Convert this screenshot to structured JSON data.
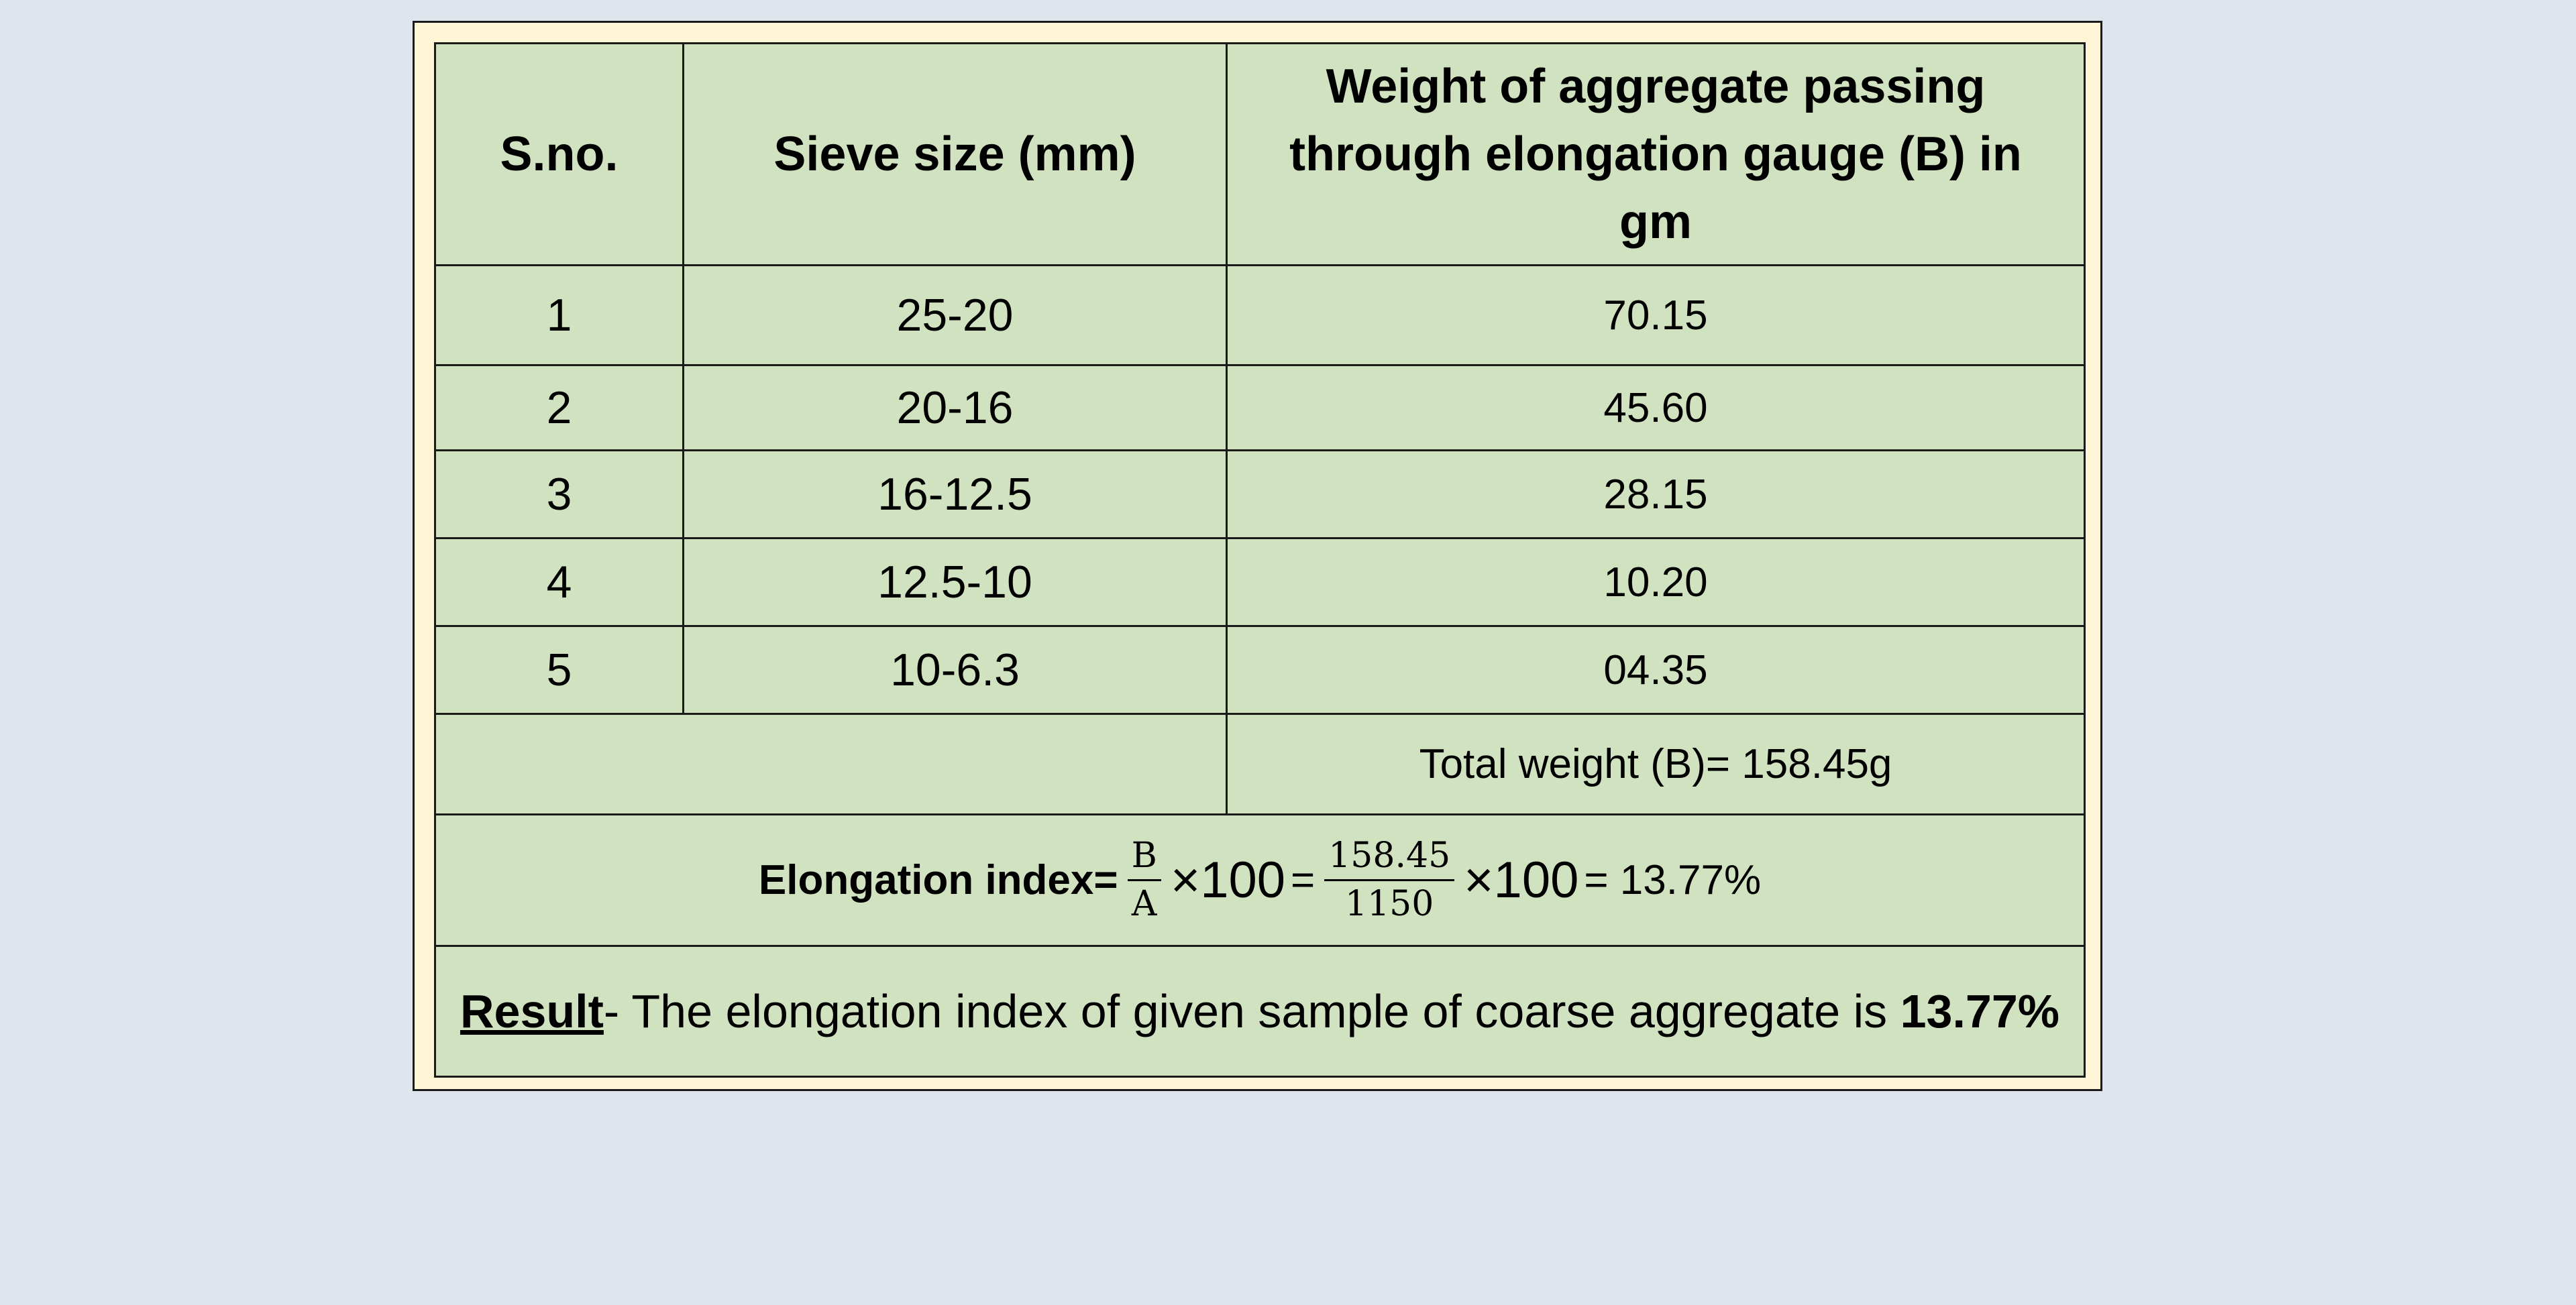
{
  "table": {
    "headers": {
      "sno": "S.no.",
      "sieve_size": "Sieve size (mm)",
      "weight_line1": "Weight of aggregate passing",
      "weight_line2": "through elongation gauge (B) in",
      "weight_line3": "gm"
    },
    "rows": [
      {
        "sno": "1",
        "sieve": "25-20",
        "weight": "70.15"
      },
      {
        "sno": "2",
        "sieve": "20-16",
        "weight": "45.60"
      },
      {
        "sno": "3",
        "sieve": "16-12.5",
        "weight": "28.15"
      },
      {
        "sno": "4",
        "sieve": "12.5-10",
        "weight": "10.20"
      },
      {
        "sno": "5",
        "sieve": "10-6.3",
        "weight": "04.35"
      }
    ],
    "total": "Total weight (B)= 158.45g"
  },
  "formula": {
    "label": "Elongation index=",
    "frac1_num": "B",
    "frac1_den": "A",
    "times1": "×100",
    "eq1": "=",
    "frac2_num": "158.45",
    "frac2_den": "1150",
    "times2": "×100",
    "result": "= 13.77%"
  },
  "result": {
    "label": "Result",
    "text": "- The elongation index of given sample of coarse aggregate is ",
    "value": "13.77%"
  },
  "colors": {
    "page_background": "#dfe5ed",
    "frame_background": "#fef6d6",
    "table_background": "#d1e2c1",
    "border": "#1a1a1a"
  }
}
